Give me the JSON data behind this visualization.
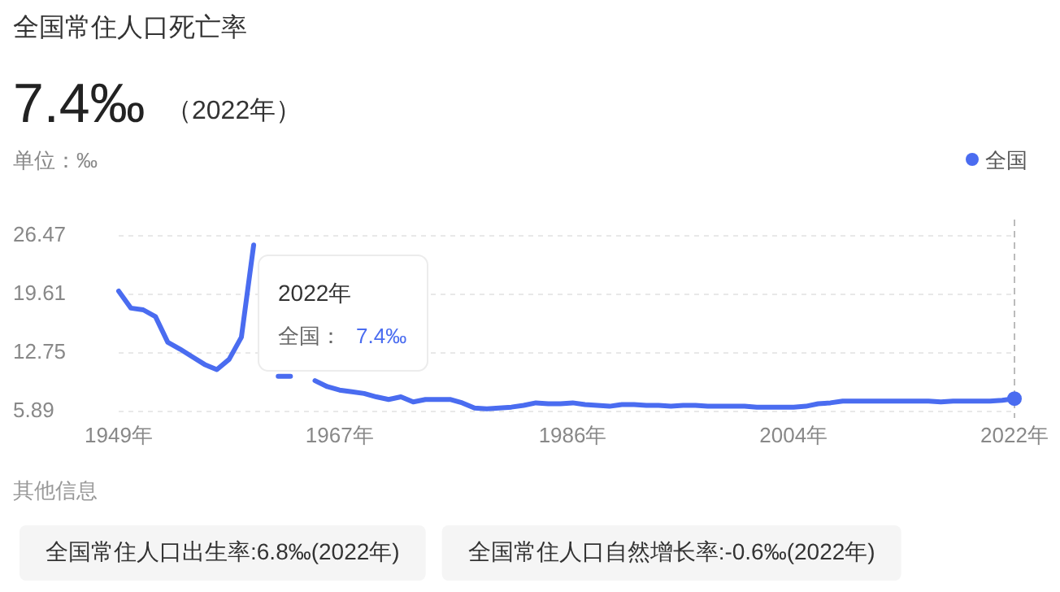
{
  "chart_data": {
    "type": "line",
    "title": "全国常住人口死亡率",
    "annotations": [
      "7.4‰",
      "（2022年）",
      "单位：‰",
      "2022年",
      "全国：",
      "7.4‰",
      "其他信息",
      "全国常住人口出生率:6.8‰(2022年)",
      "全国常住人口自然增长率:-0.6‰(2022年)"
    ],
    "x": [
      1949,
      1950,
      1951,
      1952,
      1953,
      1954,
      1955,
      1956,
      1957,
      1958,
      1959,
      1960,
      1961,
      1962,
      1963,
      1964,
      1965,
      1966,
      1967,
      1968,
      1969,
      1970,
      1971,
      1972,
      1973,
      1974,
      1975,
      1976,
      1977,
      1978,
      1979,
      1980,
      1981,
      1982,
      1983,
      1984,
      1985,
      1986,
      1987,
      1988,
      1989,
      1990,
      1991,
      1992,
      1993,
      1994,
      1995,
      1996,
      1997,
      1998,
      1999,
      2000,
      2001,
      2002,
      2003,
      2004,
      2005,
      2006,
      2007,
      2008,
      2009,
      2010,
      2011,
      2012,
      2013,
      2014,
      2015,
      2016,
      2017,
      2018,
      2019,
      2020,
      2021,
      2022
    ],
    "series": [
      {
        "name": "全国",
        "color": "#4a6cf0",
        "values": [
          20.0,
          18.0,
          17.8,
          17.0,
          14.0,
          13.2,
          12.3,
          11.4,
          10.8,
          12.0,
          14.6,
          25.4,
          null,
          10.0,
          10.0,
          null,
          9.5,
          8.8,
          8.4,
          8.2,
          8.0,
          7.6,
          7.3,
          7.6,
          7.0,
          7.3,
          7.3,
          7.3,
          6.9,
          6.3,
          6.2,
          6.3,
          6.4,
          6.6,
          6.9,
          6.8,
          6.8,
          6.9,
          6.7,
          6.6,
          6.5,
          6.7,
          6.7,
          6.6,
          6.6,
          6.5,
          6.6,
          6.6,
          6.5,
          6.5,
          6.5,
          6.5,
          6.4,
          6.4,
          6.4,
          6.4,
          6.5,
          6.8,
          6.9,
          7.1,
          7.1,
          7.1,
          7.1,
          7.1,
          7.1,
          7.1,
          7.1,
          7.0,
          7.1,
          7.1,
          7.1,
          7.1,
          7.2,
          7.4
        ]
      },
      {
        "type": "scatter",
        "color": "#4a6cf0",
        "marker": "circle",
        "x": [
          2022
        ],
        "values": [
          7.4
        ]
      }
    ],
    "xlim": [
      1949,
      2022
    ],
    "xticks": [
      {
        "value": 1949,
        "label": "1949年"
      },
      {
        "value": 1967,
        "label": "1967年"
      },
      {
        "value": 1986,
        "label": "1986年"
      },
      {
        "value": 2004,
        "label": "2004年"
      },
      {
        "value": 2022,
        "label": "2022年"
      }
    ],
    "ylim": [
      5.89,
      26.47
    ],
    "yticks": [
      5.89,
      12.75,
      19.61,
      26.47
    ],
    "ref_lines": [
      {
        "axis": "x",
        "value": 2022,
        "color": "#bbbbbb",
        "line_style": "dashed"
      }
    ],
    "grid": "y",
    "legend": "top right",
    "marker": "none",
    "line_style": "solid"
  }
}
